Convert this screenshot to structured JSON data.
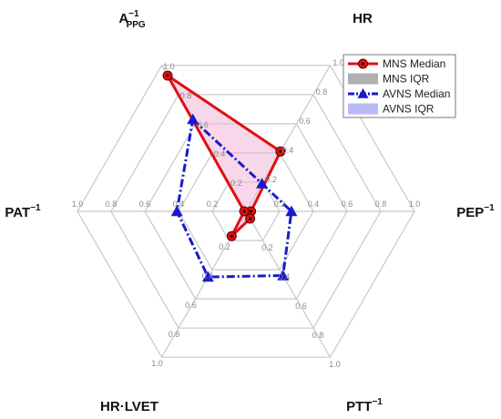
{
  "chart_data": {
    "type": "radar",
    "title": "",
    "axes": [
      {
        "key": "appg",
        "base": "A",
        "sup": "−1",
        "sub": "PPG"
      },
      {
        "key": "hr",
        "base": "HR",
        "sup": "",
        "sub": ""
      },
      {
        "key": "pep",
        "base": "PEP",
        "sup": "−1",
        "sub": ""
      },
      {
        "key": "ptt",
        "base": "PTT",
        "sup": "−1",
        "sub": ""
      },
      {
        "key": "hrlvet",
        "base": "HR·LVET",
        "sup": "",
        "sub": ""
      },
      {
        "key": "pat",
        "base": "PAT",
        "sup": "−1",
        "sub": ""
      }
    ],
    "range": [
      0,
      1.0
    ],
    "ticks": [
      0.2,
      0.4,
      0.6,
      0.8,
      1.0
    ],
    "tick_labels": [
      "0.2",
      "0.4",
      "0.6",
      "0.8",
      "1.0"
    ],
    "grid": true,
    "series": [
      {
        "name": "MNS Median",
        "color": "#e01010",
        "marker": "circle",
        "dash": "solid",
        "values": [
          0.93,
          0.41,
          0.03,
          0.05,
          0.17,
          0.01
        ]
      },
      {
        "name": "AVNS Median",
        "color": "#1a1acc",
        "marker": "triangle",
        "dash": "dashdot",
        "values": [
          0.63,
          0.19,
          0.27,
          0.44,
          0.45,
          0.41
        ]
      }
    ],
    "iqr": [
      {
        "name": "MNS IQR",
        "color": "#b0b0b0"
      },
      {
        "name": "AVNS IQR",
        "color": "#b9b9f5"
      }
    ],
    "legend": {
      "position": "top-right",
      "entries": [
        "MNS Median",
        "MNS IQR",
        "AVNS Median",
        "AVNS IQR"
      ]
    }
  }
}
